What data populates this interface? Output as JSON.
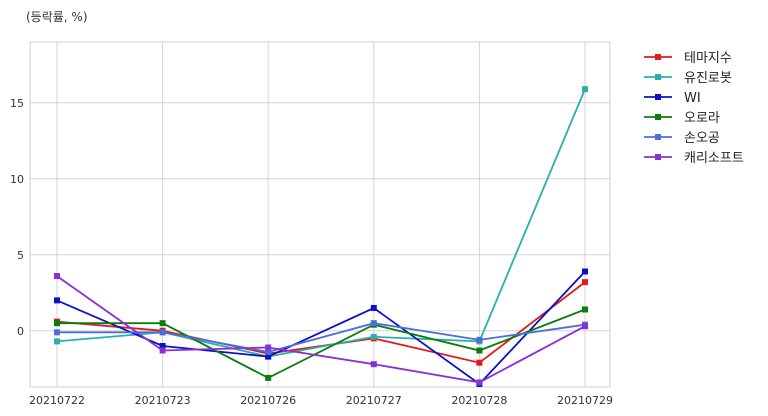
{
  "chart_data": {
    "type": "line",
    "unit_label": "(등락률, %)",
    "title": "",
    "xlabel": "",
    "ylabel": "",
    "categories": [
      "20210722",
      "20210723",
      "20210726",
      "20210727",
      "20210728",
      "20210729"
    ],
    "yticks": [
      0,
      5,
      10,
      15
    ],
    "ylim": [
      -3.7,
      19
    ],
    "grid": true,
    "legend_position": "outside-right",
    "series": [
      {
        "name": "테마지수",
        "color": "#e31a1c",
        "values": [
          0.6,
          0.0,
          -1.5,
          -0.5,
          -2.1,
          3.2
        ]
      },
      {
        "name": "유진로봇",
        "color": "#2ab0aa",
        "values": [
          -0.7,
          -0.1,
          -1.7,
          -0.4,
          -0.7,
          15.9
        ]
      },
      {
        "name": "WI",
        "color": "#0a12c8",
        "values": [
          2.0,
          -1.0,
          -1.7,
          1.5,
          -3.5,
          3.9
        ]
      },
      {
        "name": "오로라",
        "color": "#0b7d0b",
        "values": [
          0.5,
          0.5,
          -3.1,
          0.4,
          -1.3,
          1.4
        ]
      },
      {
        "name": "손오공",
        "color": "#4a6fd8",
        "values": [
          -0.1,
          -0.1,
          -1.4,
          0.5,
          -0.6,
          0.4
        ]
      },
      {
        "name": "캐리소프트",
        "color": "#8a2fd6",
        "values": [
          3.6,
          -1.3,
          -1.1,
          -2.2,
          -3.4,
          0.3
        ]
      }
    ]
  }
}
